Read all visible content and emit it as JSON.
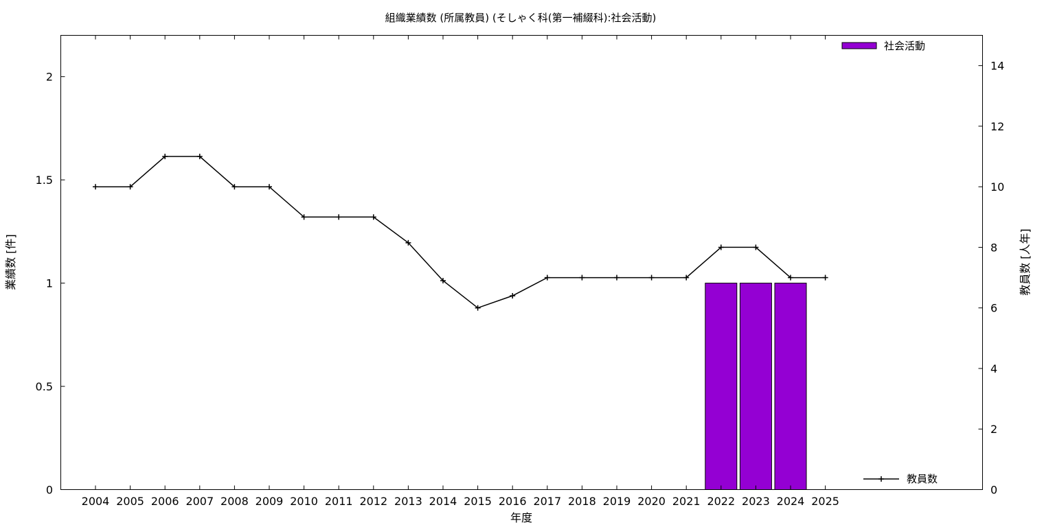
{
  "chart_data": {
    "type": "bar",
    "title": "組織業績数 (所属教員) (そしゃく科(第一補綴科):社会活動)",
    "xlabel": "年度",
    "ylabel": "業績数 [件]",
    "y2label": "教員数 [人年]",
    "categories": [
      "2004",
      "2005",
      "2006",
      "2007",
      "2008",
      "2009",
      "2010",
      "2011",
      "2012",
      "2013",
      "2014",
      "2015",
      "2016",
      "2017",
      "2018",
      "2019",
      "2020",
      "2021",
      "2022",
      "2023",
      "2024",
      "2025"
    ],
    "ylim": [
      0,
      2.2
    ],
    "yticks": [
      "0",
      "0.5",
      "1",
      "1.5",
      "2"
    ],
    "y2lim": [
      0,
      15
    ],
    "y2ticks": [
      "0",
      "2",
      "4",
      "6",
      "8",
      "10",
      "12",
      "14"
    ],
    "grid": false,
    "series": [
      {
        "name": "社会活動",
        "type": "bar",
        "axis": "left",
        "color": "#9400d3",
        "values": [
          0,
          0,
          0,
          0,
          0,
          0,
          0,
          0,
          0,
          0,
          0,
          0,
          0,
          0,
          0,
          0,
          0,
          0,
          1,
          1,
          1,
          0
        ]
      },
      {
        "name": "教員数",
        "type": "line",
        "axis": "right",
        "color": "#000000",
        "marker": "plus",
        "values": [
          10,
          10,
          11,
          11,
          10,
          10,
          9,
          9,
          9,
          8.15,
          6.9,
          6,
          6.4,
          7,
          7,
          7,
          7,
          7,
          8,
          8,
          7,
          7
        ]
      }
    ],
    "legend": [
      {
        "label": "社会活動",
        "position": "top-right"
      },
      {
        "label": "教員数",
        "position": "bottom-right"
      }
    ]
  }
}
